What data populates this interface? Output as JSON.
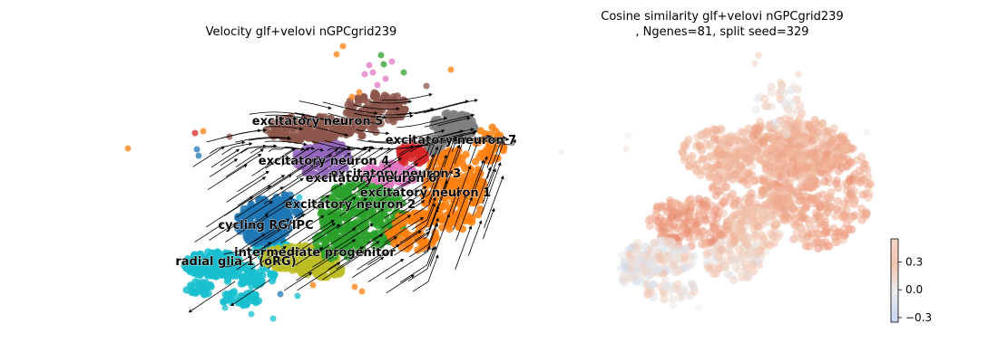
{
  "chart_data": [
    {
      "type": "scatter",
      "subtype": "umap-embedding-with-velocity-streamlines",
      "title": "Velocity glf+velovi nGPCgrid239",
      "axes_visible": false,
      "grid": false,
      "legend": "on-data cluster labels",
      "clusters": [
        {
          "name": "excitatory neuron 5",
          "color": "#8c564b"
        },
        {
          "name": "excitatory neuron 7",
          "color": "#7f7f7f"
        },
        {
          "name": "excitatory neuron 4",
          "color": "#9467bd"
        },
        {
          "name": "excitatory neuron 3",
          "color": "#d62728"
        },
        {
          "name": "excitatory neuron 6",
          "color": "#e377c2"
        },
        {
          "name": "excitatory neuron 1",
          "color": "#ff7f0e"
        },
        {
          "name": "excitatory neuron 2",
          "color": "#2ca02c"
        },
        {
          "name": "cycling RG/IPC",
          "color": "#1f77b4"
        },
        {
          "name": "intermediate progenitor",
          "color": "#bcbd22"
        },
        {
          "name": "radial glia 1 (oRG)",
          "color": "#17becf"
        }
      ]
    },
    {
      "type": "scatter",
      "subtype": "umap-embedding-colored-by-value",
      "title_line1": "Cosine similarity glf+velovi nGPCgrid239",
      "title_line2": ", Ngenes=81, split seed=329",
      "axes_visible": false,
      "grid": false,
      "colorbar": {
        "ticks": [
          "0.3",
          "0.0",
          "−0.3"
        ],
        "range": [
          -0.35,
          0.55
        ],
        "colormap": "coolwarm"
      }
    }
  ]
}
